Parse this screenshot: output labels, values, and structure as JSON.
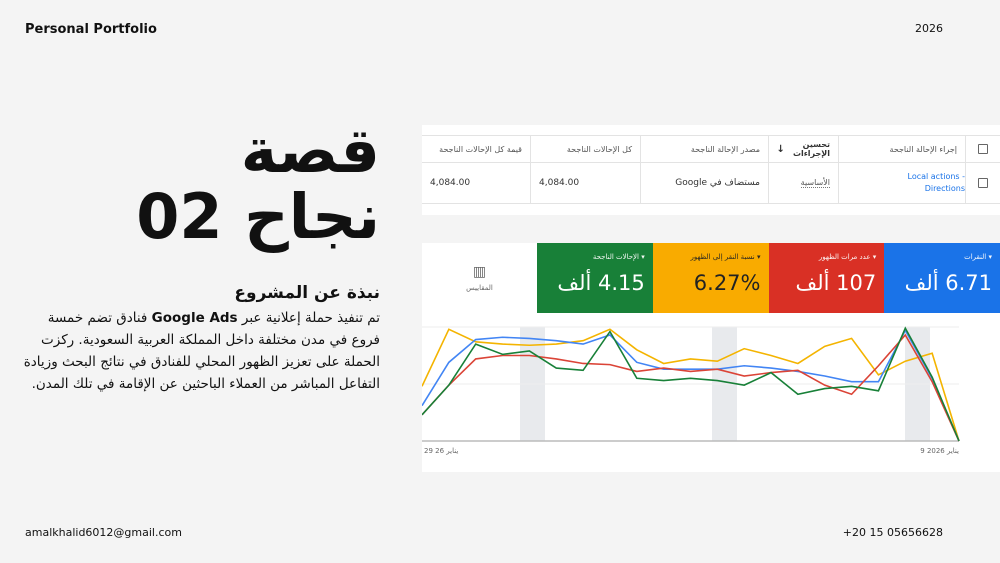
{
  "header": {
    "brand": "Personal Portfolio",
    "year": "2026"
  },
  "footer": {
    "email": "amalkhalid6012@gmail.com",
    "phone": "+20 15 05656628"
  },
  "title": {
    "line1": "قصة",
    "line2": "نجاح 02"
  },
  "about": {
    "heading": "نبذة عن المشروع",
    "text_before": "تم تنفيذ حملة إعلانية عبر ",
    "brand": "Google Ads",
    "text_after": " فنادق تضم خمسة فروع في مدن مختلفة داخل المملكة العربية السعودية. ركزت الحملة على تعزيز الظهور المحلي للفنادق في نتائج البحث وزيادة التفاعل المباشر من العملاء الباحثين عن الإقامة في تلك المدن."
  },
  "table": {
    "headers": [
      "إجراء الإحالة الناجحة",
      "تحسين الإجراءات",
      "مصدر الإحالة الناجحة",
      "كل الإحالات الناجحة",
      "قيمة كل الإحالات الناجحة"
    ],
    "sort_icon": "arrow-down-icon",
    "rows": [
      {
        "action": "Local actions - Directions",
        "optimization": "الأساسية",
        "source": "مستضاف في Google",
        "all_conversions": "4,084.00",
        "all_conv_value": "4,084.00"
      }
    ]
  },
  "metrics": {
    "tool_label": "المقاييس",
    "tiles": [
      {
        "label": "النقرات",
        "value": "6.71 ألف",
        "color": "#1a73e8"
      },
      {
        "label": "عدد مرات الظهور",
        "value": "107 ألف",
        "color": "#d93025"
      },
      {
        "label": "نسبة النقر إلى الظهور",
        "value": "6.27%",
        "color": "#f9ab00"
      },
      {
        "label": "الإحالات الناجحة",
        "value": "4.15 ألف",
        "color": "#188038"
      }
    ]
  },
  "chart_data": {
    "type": "line",
    "x_tick_labels": [
      "29 يناير 26",
      "9 يناير 2026"
    ],
    "series": [
      {
        "color": "#f4b400",
        "values": [
          48,
          98,
          87,
          85,
          84,
          85,
          88,
          98,
          80,
          68,
          72,
          70,
          81,
          75,
          68,
          83,
          90,
          58,
          70,
          77,
          0
        ]
      },
      {
        "color": "#4285f4",
        "values": [
          31,
          69,
          89,
          91,
          90,
          88,
          85,
          93,
          69,
          63,
          63,
          63,
          66,
          64,
          61,
          57,
          52,
          52,
          97,
          55,
          0
        ]
      },
      {
        "color": "#db4437",
        "values": [
          23,
          49,
          72,
          75,
          75,
          72,
          68,
          67,
          61,
          64,
          61,
          63,
          57,
          60,
          62,
          49,
          41,
          66,
          93,
          52,
          0
        ]
      },
      {
        "color": "#188038",
        "values": [
          23,
          49,
          85,
          76,
          79,
          64,
          62,
          96,
          55,
          53,
          55,
          53,
          49,
          60,
          41,
          46,
          48,
          44,
          99,
          56,
          0
        ]
      }
    ],
    "ylim": [
      0,
      100
    ],
    "grid": true
  }
}
